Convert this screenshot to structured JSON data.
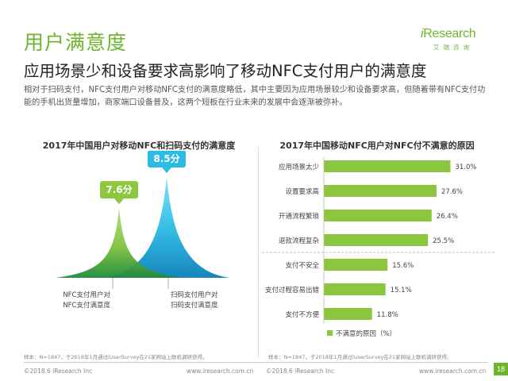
{
  "header": {
    "title": "用户满意度",
    "subtitle": "应用场景少和设备要求高影响了移动NFC支付用户的满意度",
    "description": "相对于扫码支付，NFC支付用户对移动NFC支付的满意度略低，其中主要因为应用场景较少和设备要求高，但随着带有NFC支付功能的手机出货量增加，商家端口设备普及，这两个短板在行业未来的发展中会逐渐被弥补。"
  },
  "logo": {
    "name_prefix": "i",
    "name_rest": "Research",
    "sub": "艾瑞咨询"
  },
  "colors": {
    "brand_green": "#6cb52d",
    "bar_green": "#8cc63f",
    "left_peak_green": "#8dc63f",
    "right_peak_blue": "#2bbce6"
  },
  "chart_data": [
    {
      "type": "area",
      "title": "2017年中国用户对移动NFC和扫码支付的满意度",
      "series": [
        {
          "name": "NFC支付用户对NFC支付满意度",
          "value": 7.6,
          "value_label": "7.6分"
        },
        {
          "name": "扫码支付用户对扫码支付满意度",
          "value": 8.5,
          "value_label": "8.5分"
        }
      ],
      "legend": [
        "NFC支付用户对\nNFC支付满意度",
        "扫码支付用户对\n扫码支付满意度"
      ],
      "legend_lines": [
        [
          "NFC支付用户对",
          "NFC支付满意度"
        ],
        [
          "扫码支付用户对",
          "扫码支付满意度"
        ]
      ]
    },
    {
      "type": "bar",
      "orientation": "horizontal",
      "title": "2017年中国移动NFC用户对NFC付不满意的原因",
      "categories": [
        "应用场景太少",
        "设置要求高",
        "开通流程繁琐",
        "退款流程复杂",
        "支付不安全",
        "支付过程容易出错",
        "支付不方便"
      ],
      "values": [
        31.0,
        27.6,
        26.4,
        25.5,
        15.6,
        15.1,
        11.8
      ],
      "value_labels": [
        "31.0%",
        "27.6%",
        "26.4%",
        "25.5%",
        "15.6%",
        "15.1%",
        "11.8%"
      ],
      "legend": "不满意的原因（%）",
      "xlim": [
        0,
        35
      ],
      "grid": false,
      "legend_position": "bottom"
    }
  ],
  "notes": {
    "left_sample": "样本：N=1847，于2018年1月通过iUserSurvey在21家网站上联机调研获得。",
    "right_sample": "样本：N=1847，于2018年1月通过iUserSurvey在21家网站上联机调研获得。"
  },
  "footer": {
    "copyright_left": "©2018.6 iResearch Inc",
    "url_left": "www.iresearch.com.cn",
    "copyright_right": "©2018.6 iResearch Inc",
    "url_right": "www.iresearch.com.cn",
    "page_number": "18"
  }
}
